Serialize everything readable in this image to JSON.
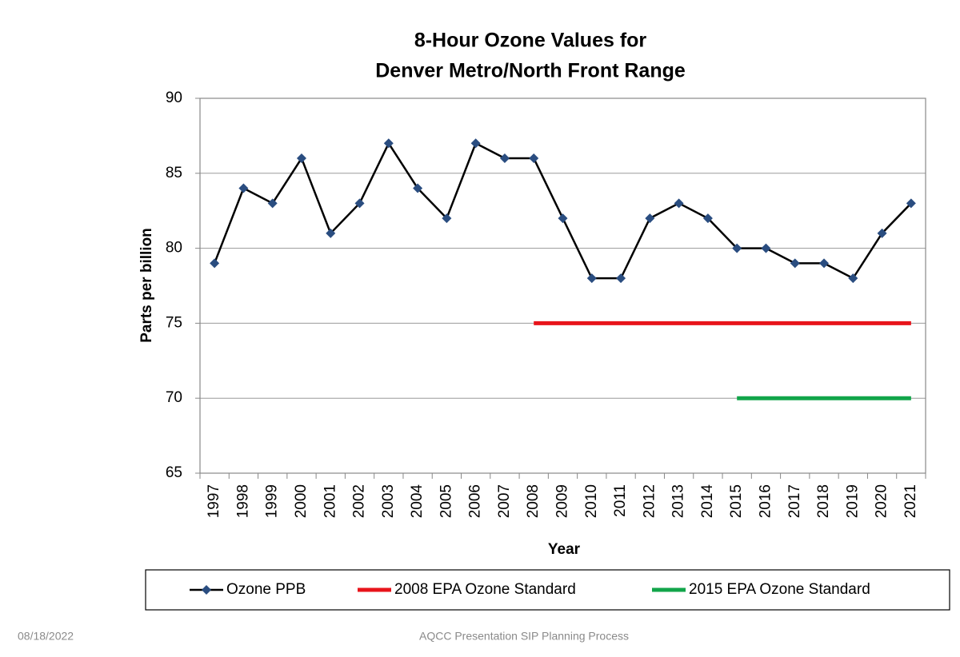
{
  "chart_data": {
    "type": "line",
    "title": [
      "8-Hour Ozone Values for",
      "Denver Metro/North Front Range"
    ],
    "x_label": "Year",
    "y_label": "Parts per billion",
    "categories": [
      "1997",
      "1998",
      "1999",
      "2000",
      "2001",
      "2002",
      "2003",
      "2004",
      "2005",
      "2006",
      "2007",
      "2008",
      "2009",
      "2010",
      "2011",
      "2012",
      "2013",
      "2014",
      "2015",
      "2016",
      "2017",
      "2018",
      "2019",
      "2020",
      "2021"
    ],
    "series": [
      {
        "name": "Ozone PPB",
        "color": "#000000",
        "marker_color": "#2a4d80",
        "values": [
          79,
          84,
          83,
          86,
          81,
          83,
          87,
          84,
          82,
          87,
          86,
          86,
          82,
          78,
          78,
          82,
          83,
          82,
          80,
          80,
          79,
          79,
          78,
          81,
          83
        ]
      },
      {
        "name": "2008 EPA Ozone Standard",
        "color": "#e8141b",
        "values": [
          null,
          null,
          null,
          null,
          null,
          null,
          null,
          null,
          null,
          null,
          null,
          75,
          75,
          75,
          75,
          75,
          75,
          75,
          75,
          75,
          75,
          75,
          75,
          75,
          75
        ]
      },
      {
        "name": "2015 EPA Ozone Standard",
        "color": "#12a54a",
        "values": [
          null,
          null,
          null,
          null,
          null,
          null,
          null,
          null,
          null,
          null,
          null,
          null,
          null,
          null,
          null,
          null,
          null,
          null,
          70,
          70,
          70,
          70,
          70,
          70,
          70
        ]
      }
    ],
    "ylim": [
      65,
      90
    ],
    "yticks": [
      65,
      70,
      75,
      80,
      85,
      90
    ],
    "grid": true,
    "legend": "bottom"
  },
  "footer": {
    "date": "08/18/2022",
    "text": "AQCC Presentation SIP Planning Process"
  }
}
